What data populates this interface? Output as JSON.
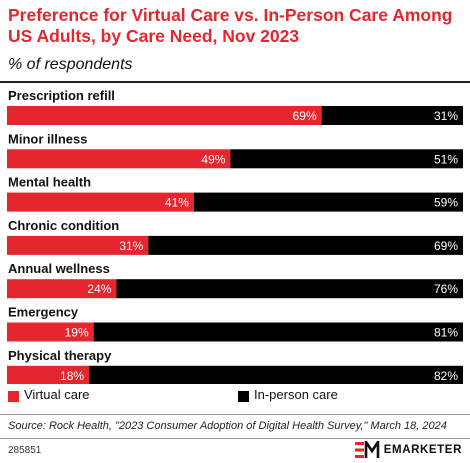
{
  "header": {
    "title": "Preference for Virtual Care vs. In-Person Care Among US Adults, by Care Need, Nov 2023",
    "subtitle": "% of respondents"
  },
  "colors": {
    "virtual": "#e4262f",
    "in_person": "#000000",
    "title": "#e4262f"
  },
  "chart_data": {
    "type": "bar",
    "orientation": "horizontal",
    "stacked": true,
    "percent_stacked": true,
    "categories": [
      "Prescription refill",
      "Minor illness",
      "Mental health",
      "Chronic condition",
      "Annual wellness",
      "Emergency",
      "Physical therapy"
    ],
    "series": [
      {
        "name": "Virtual care",
        "values": [
          69,
          49,
          41,
          31,
          24,
          19,
          18
        ],
        "labels": [
          "69%",
          "49%",
          "41%",
          "31%",
          "24%",
          "19%",
          "18%"
        ]
      },
      {
        "name": "In-person care",
        "values": [
          31,
          51,
          59,
          69,
          76,
          81,
          82
        ],
        "labels": [
          "31%",
          "51%",
          "59%",
          "69%",
          "76%",
          "81%",
          "82%"
        ]
      }
    ],
    "xlim": [
      0,
      100
    ],
    "legend_position": "bottom",
    "grid": false
  },
  "legend": {
    "virtual_label": "Virtual care",
    "in_person_label": "In-person care"
  },
  "footer": {
    "source": "Source: Rock Health, \"2023 Consumer Adoption of Digital Health Survey,\" March 18, 2024",
    "chart_id": "285851",
    "brand_word": "EMARKETER",
    "logo_icon": "em-logo-icon"
  }
}
